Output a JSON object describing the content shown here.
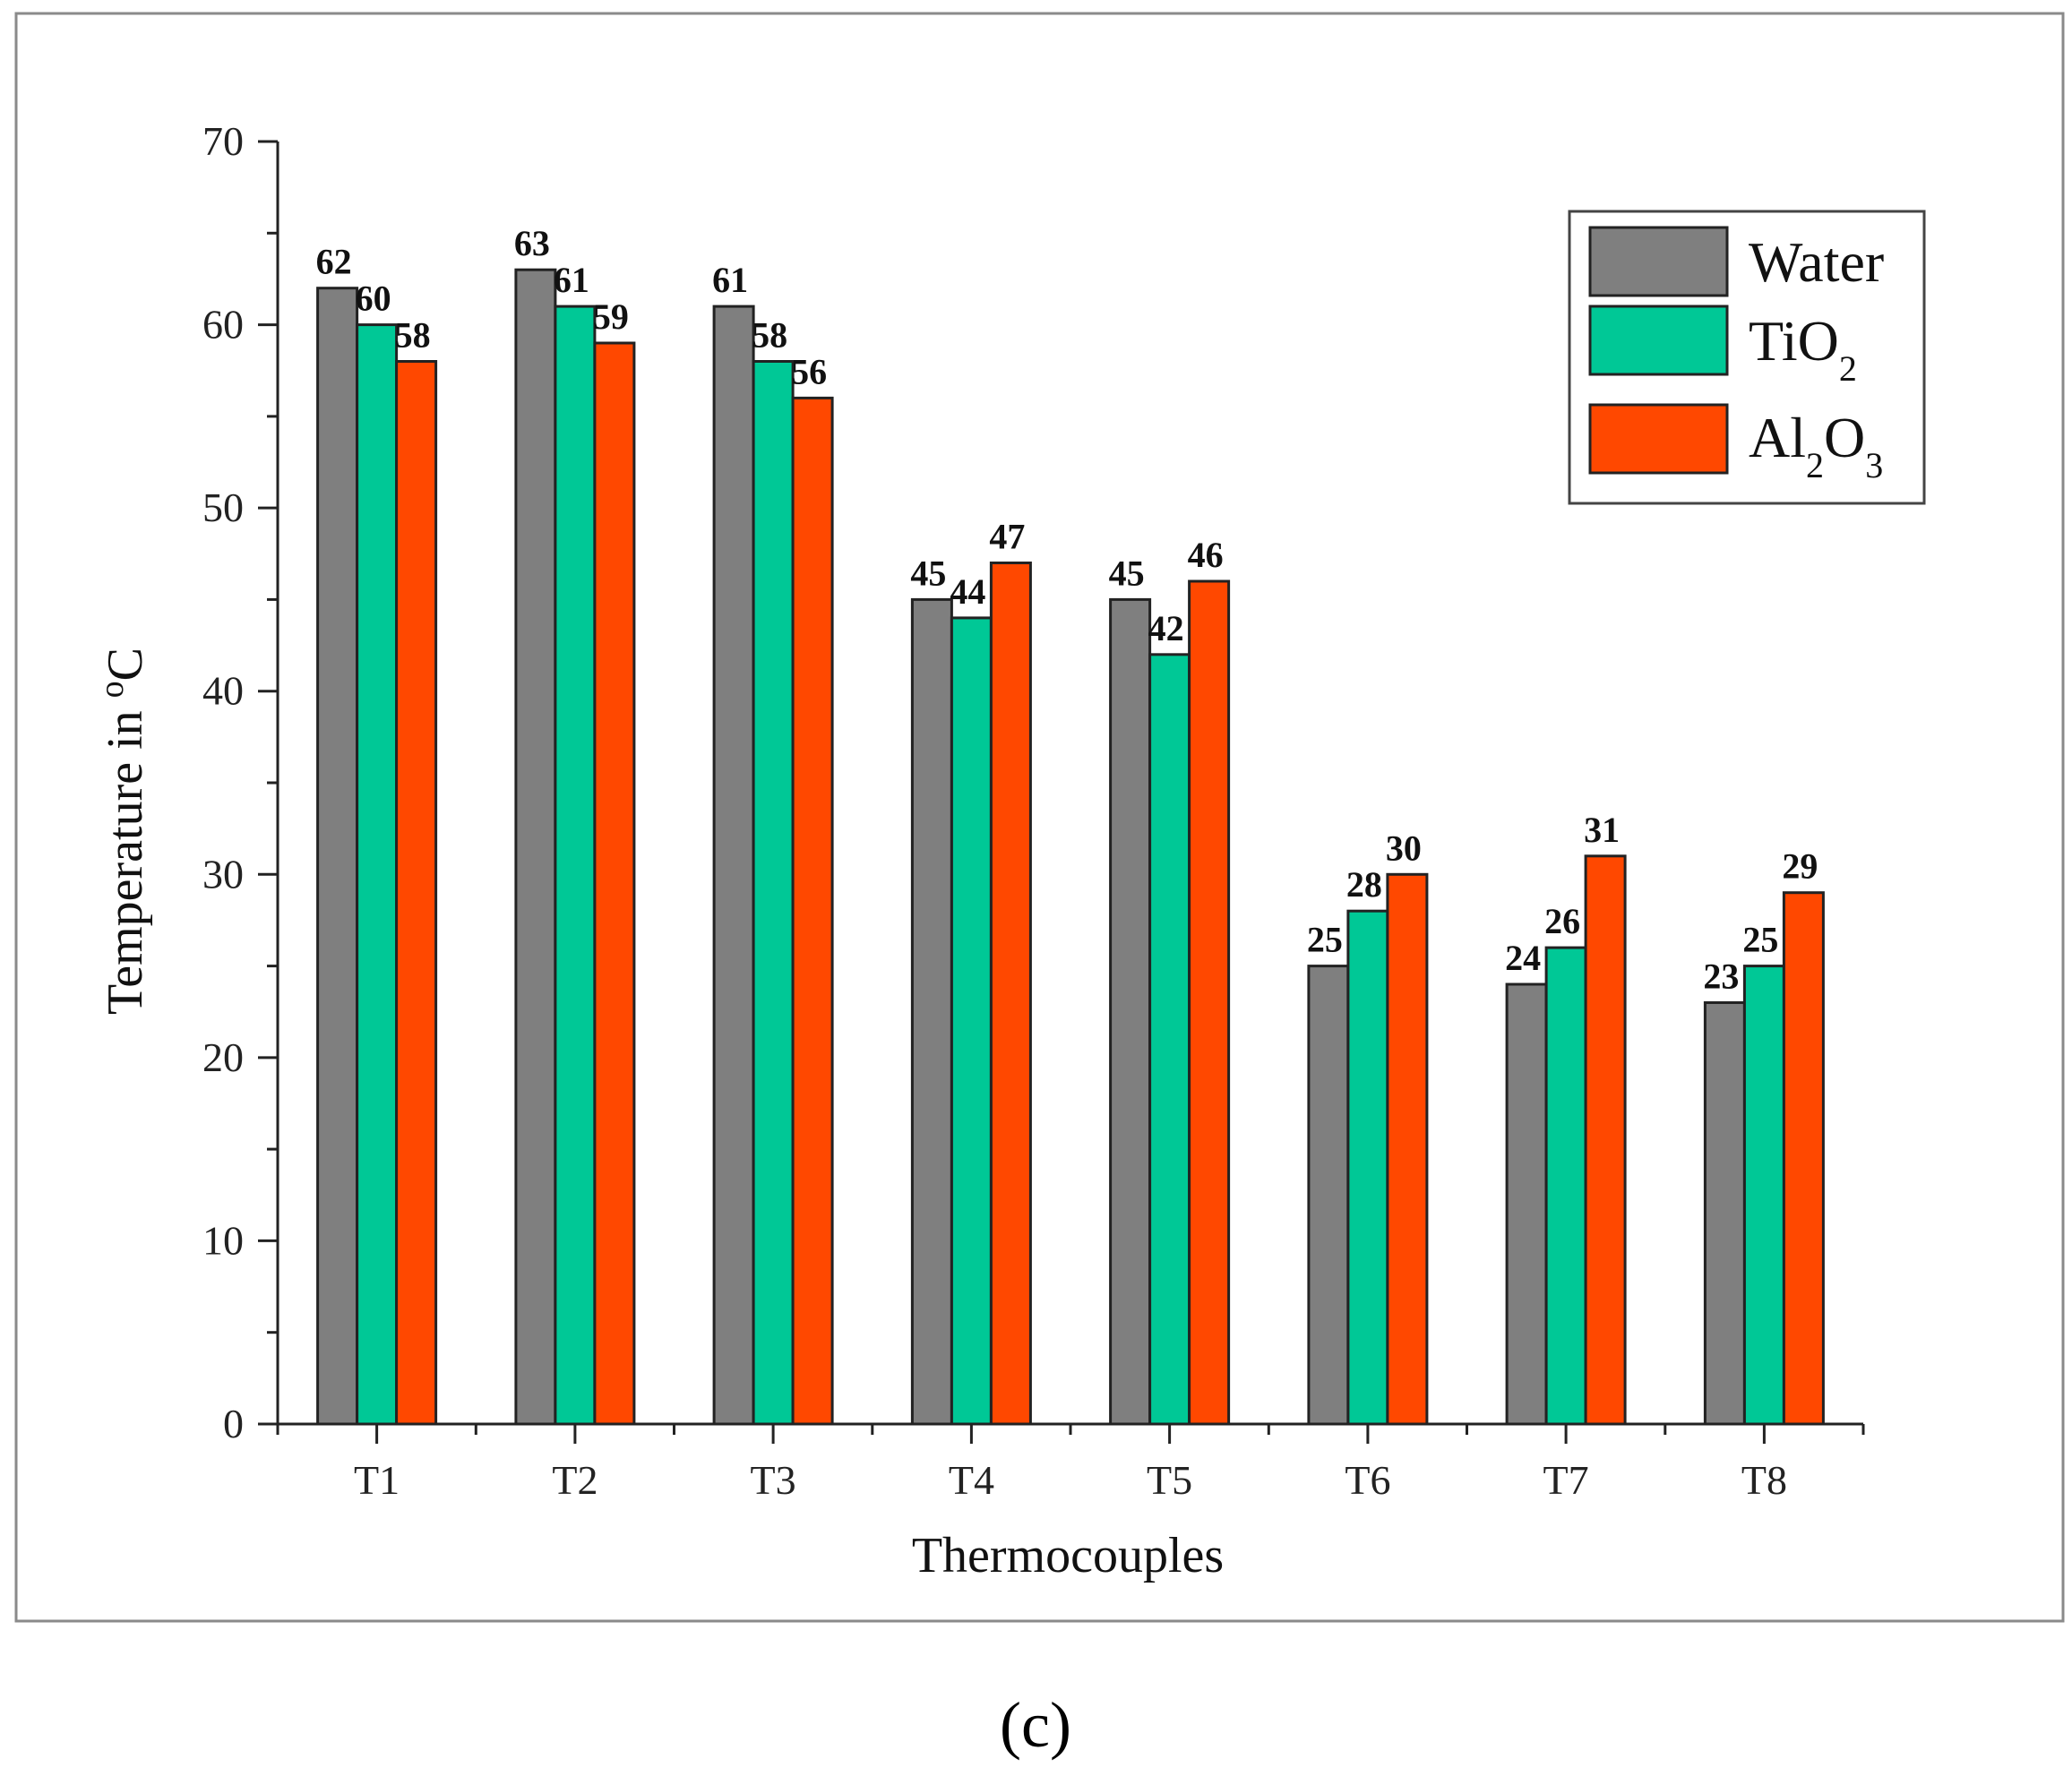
{
  "chart_data": {
    "type": "bar",
    "categories": [
      "T1",
      "T2",
      "T3",
      "T4",
      "T5",
      "T6",
      "T7",
      "T8"
    ],
    "series": [
      {
        "name": "Water",
        "color": "#7f7f7f",
        "values": [
          62,
          63,
          61,
          45,
          45,
          25,
          24,
          23
        ]
      },
      {
        "name": "TiO2",
        "color": "#00c896",
        "values": [
          60,
          61,
          58,
          44,
          42,
          28,
          26,
          25
        ]
      },
      {
        "name": "Al2O3",
        "color": "#ff4800",
        "values": [
          58,
          59,
          56,
          47,
          46,
          30,
          31,
          29
        ]
      }
    ],
    "xlabel": "Thermocouples",
    "ylabel": "Temperature in °C",
    "ylim": [
      0,
      70
    ],
    "yticks": [
      0,
      10,
      20,
      30,
      40,
      50,
      60,
      70
    ],
    "grid": false,
    "legend_position": "top-right",
    "data_labels": true
  },
  "caption": "(c)"
}
